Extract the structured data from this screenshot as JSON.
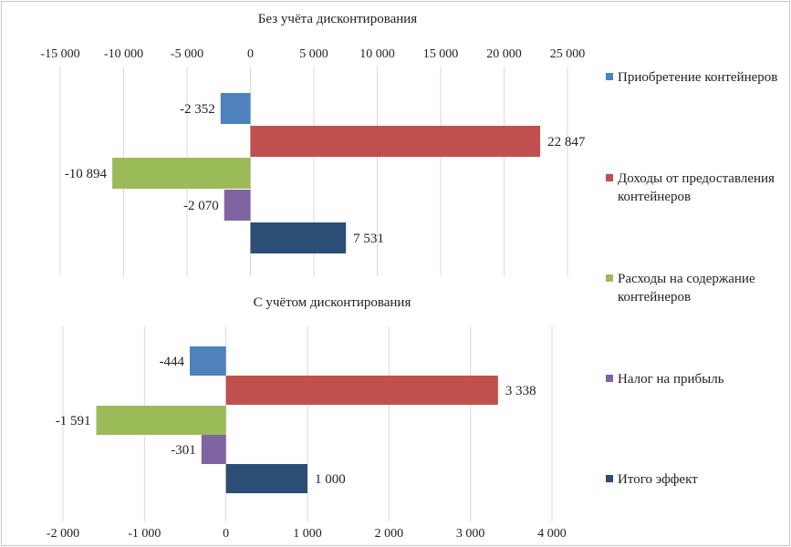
{
  "chart_data": [
    {
      "type": "bar",
      "orientation": "horizontal",
      "title": "Без учёта дисконтирования",
      "categories": [
        "Приобретение контейнеров",
        "Доходы от предоставления контейнеров",
        "Расходы на содержание контейнеров",
        "Налог на прибыль",
        "Итого эффект"
      ],
      "values": [
        -2352,
        22847,
        -10894,
        -2070,
        7531
      ],
      "value_labels": [
        "-2 352",
        "22 847",
        "-10 894",
        "-2 070",
        "7 531"
      ],
      "xlim": [
        -15000,
        25000
      ],
      "ticks": [
        -15000,
        -10000,
        -5000,
        0,
        5000,
        10000,
        15000,
        20000,
        25000
      ],
      "tick_labels": [
        "-15 000",
        "-10 000",
        "-5 000",
        "0",
        "5 000",
        "10 000",
        "15 000",
        "20 000",
        "25 000"
      ],
      "axis_position": "top",
      "grid": true
    },
    {
      "type": "bar",
      "orientation": "horizontal",
      "title": "С учётом дисконтирования",
      "categories": [
        "Приобретение контейнеров",
        "Доходы от предоставления контейнеров",
        "Расходы на содержание контейнеров",
        "Налог на прибыль",
        "Итого эффект"
      ],
      "values": [
        -444,
        3338,
        -1591,
        -301,
        1000
      ],
      "value_labels": [
        "-444",
        "3 338",
        "-1 591",
        "-301",
        "1 000"
      ],
      "xlim": [
        -2000,
        4000
      ],
      "ticks": [
        -2000,
        -1000,
        0,
        1000,
        2000,
        3000,
        4000
      ],
      "tick_labels": [
        "-2 000",
        "-1 000",
        "0",
        "1 000",
        "2 000",
        "3 000",
        "4 000"
      ],
      "axis_position": "bottom",
      "grid": true
    }
  ],
  "legend": {
    "placement": "right",
    "items": [
      {
        "label": "Приобретение контейнеров",
        "color": "#4f81bd"
      },
      {
        "label": "Доходы от предоставления контейнеров",
        "color": "#c0504d"
      },
      {
        "label": "Расходы на содержание контейнеров",
        "color": "#9bbb59"
      },
      {
        "label": "Налог на прибыль",
        "color": "#8064a2"
      },
      {
        "label": "Итого эффект",
        "color": "#2c4d75"
      }
    ]
  },
  "colors": {
    "gridline": "#d9d9d9",
    "text": "#222222"
  }
}
